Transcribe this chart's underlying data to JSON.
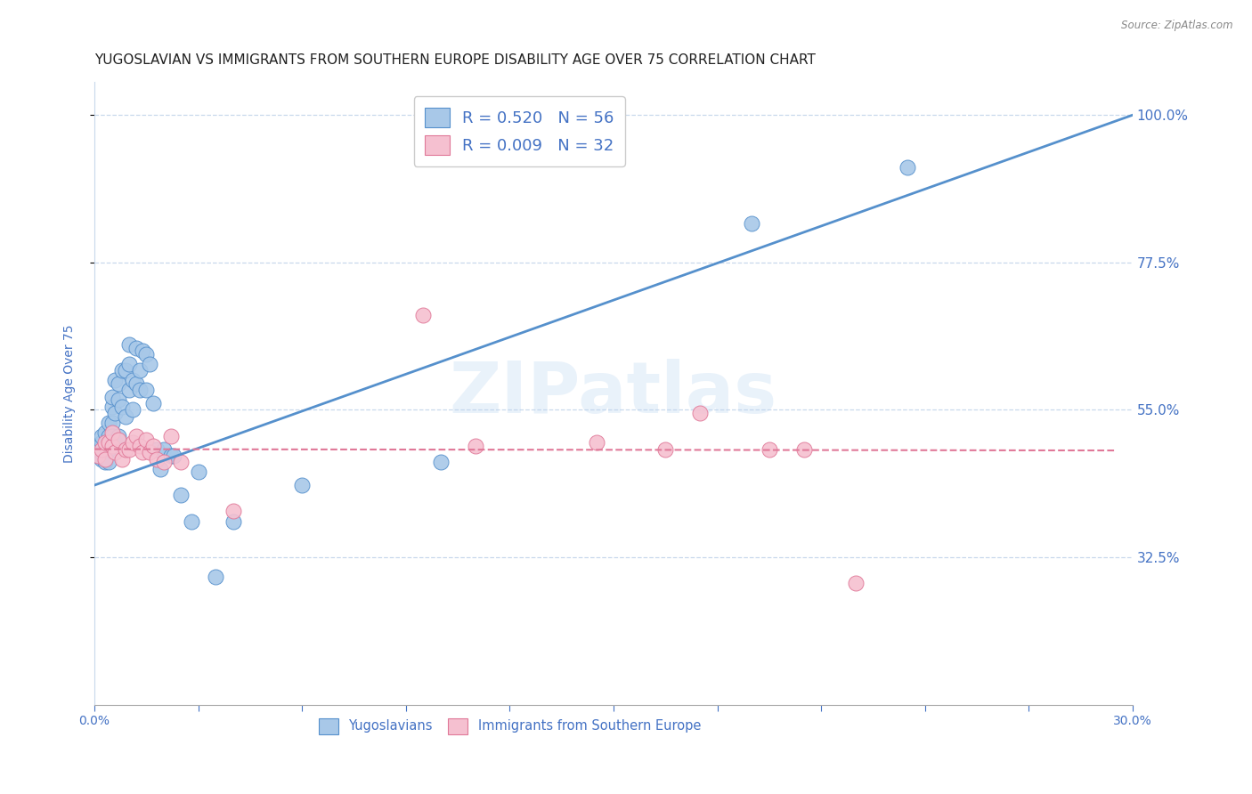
{
  "title": "YUGOSLAVIAN VS IMMIGRANTS FROM SOUTHERN EUROPE DISABILITY AGE OVER 75 CORRELATION CHART",
  "source": "Source: ZipAtlas.com",
  "ylabel": "Disability Age Over 75",
  "xlim": [
    0.0,
    0.3
  ],
  "ylim": [
    0.1,
    1.05
  ],
  "yticks": [
    0.325,
    0.55,
    0.775,
    1.0
  ],
  "ytick_labels": [
    "32.5%",
    "55.0%",
    "77.5%",
    "100.0%"
  ],
  "xticks": [
    0.0,
    0.03,
    0.06,
    0.09,
    0.12,
    0.15,
    0.18,
    0.21,
    0.24,
    0.27,
    0.3
  ],
  "xtick_labels": [
    "0.0%",
    "",
    "",
    "",
    "",
    "",
    "",
    "",
    "",
    "",
    "30.0%"
  ],
  "blue_R": 0.52,
  "blue_N": 56,
  "pink_R": 0.009,
  "pink_N": 32,
  "blue_color": "#a8c8e8",
  "blue_edge_color": "#5590cc",
  "pink_color": "#f5c0d0",
  "pink_edge_color": "#e07898",
  "watermark": "ZIPatlas",
  "legend_label_blue": "Yugoslavians",
  "legend_label_pink": "Immigrants from Southern Europe",
  "blue_scatter_x": [
    0.001,
    0.001,
    0.002,
    0.002,
    0.002,
    0.003,
    0.003,
    0.003,
    0.003,
    0.004,
    0.004,
    0.004,
    0.004,
    0.004,
    0.005,
    0.005,
    0.005,
    0.005,
    0.006,
    0.006,
    0.006,
    0.007,
    0.007,
    0.007,
    0.008,
    0.008,
    0.009,
    0.009,
    0.01,
    0.01,
    0.01,
    0.011,
    0.011,
    0.012,
    0.012,
    0.013,
    0.013,
    0.014,
    0.015,
    0.015,
    0.016,
    0.017,
    0.018,
    0.019,
    0.02,
    0.022,
    0.023,
    0.025,
    0.028,
    0.03,
    0.035,
    0.04,
    0.06,
    0.1,
    0.19,
    0.235
  ],
  "blue_scatter_y": [
    0.48,
    0.49,
    0.5,
    0.51,
    0.475,
    0.495,
    0.515,
    0.48,
    0.47,
    0.51,
    0.53,
    0.5,
    0.49,
    0.47,
    0.555,
    0.57,
    0.53,
    0.51,
    0.595,
    0.545,
    0.5,
    0.59,
    0.565,
    0.51,
    0.61,
    0.555,
    0.61,
    0.54,
    0.62,
    0.65,
    0.58,
    0.595,
    0.55,
    0.645,
    0.59,
    0.61,
    0.58,
    0.64,
    0.635,
    0.58,
    0.62,
    0.56,
    0.49,
    0.46,
    0.49,
    0.48,
    0.48,
    0.42,
    0.38,
    0.455,
    0.295,
    0.38,
    0.435,
    0.47,
    0.835,
    0.92
  ],
  "pink_scatter_x": [
    0.001,
    0.002,
    0.003,
    0.003,
    0.004,
    0.005,
    0.005,
    0.006,
    0.007,
    0.008,
    0.009,
    0.01,
    0.011,
    0.012,
    0.013,
    0.014,
    0.015,
    0.016,
    0.017,
    0.018,
    0.02,
    0.022,
    0.025,
    0.04,
    0.095,
    0.11,
    0.145,
    0.165,
    0.175,
    0.195,
    0.205,
    0.22
  ],
  "pink_scatter_y": [
    0.48,
    0.49,
    0.5,
    0.475,
    0.5,
    0.495,
    0.515,
    0.485,
    0.505,
    0.475,
    0.49,
    0.49,
    0.5,
    0.51,
    0.495,
    0.485,
    0.505,
    0.485,
    0.495,
    0.475,
    0.47,
    0.51,
    0.47,
    0.395,
    0.695,
    0.495,
    0.5,
    0.49,
    0.545,
    0.49,
    0.49,
    0.285
  ],
  "blue_line_x0": 0.0,
  "blue_line_y0": 0.435,
  "blue_line_x1": 0.3,
  "blue_line_y1": 1.0,
  "pink_line_x0": 0.0,
  "pink_line_y0": 0.49,
  "pink_line_x1": 0.295,
  "pink_line_y1": 0.488,
  "title_color": "#222222",
  "tick_label_color": "#4472c4",
  "grid_color": "#c8d8ec",
  "background_color": "#ffffff",
  "title_fontsize": 11,
  "axis_label_fontsize": 10,
  "tick_fontsize": 10
}
